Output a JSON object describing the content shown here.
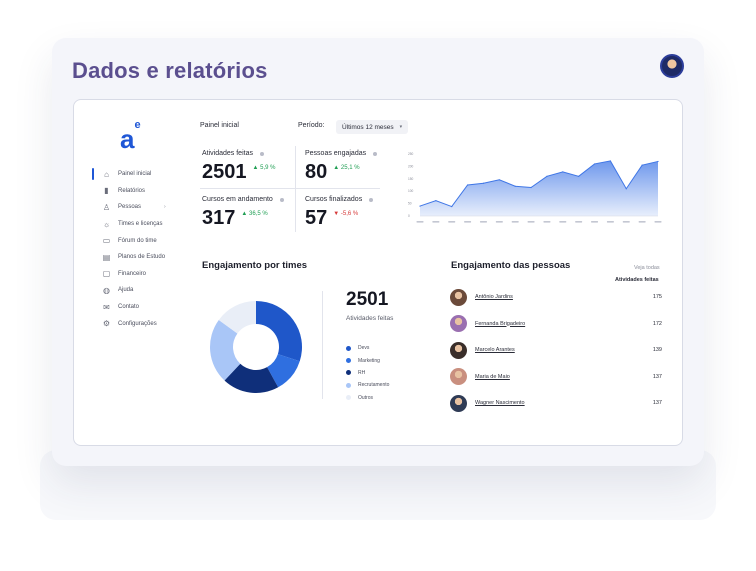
{
  "page": {
    "title": "Dados e relatórios"
  },
  "app": {
    "logo_text": "a",
    "logo_sup": "e"
  },
  "sidebar": {
    "items": [
      {
        "label": "Painel inicial",
        "icon": "home-icon",
        "active": true
      },
      {
        "label": "Relatórios",
        "icon": "bar-chart-icon"
      },
      {
        "label": "Pessoas",
        "icon": "user-icon",
        "has_chevron": true
      },
      {
        "label": "Times e licenças",
        "icon": "team-icon"
      },
      {
        "label": "Fórum do time",
        "icon": "chat-icon"
      },
      {
        "label": "Planos de Estudo",
        "icon": "book-icon"
      },
      {
        "label": "Financeiro",
        "icon": "wallet-icon"
      },
      {
        "label": "Ajuda",
        "icon": "help-icon"
      },
      {
        "label": "Contato",
        "icon": "mail-icon"
      },
      {
        "label": "Configurações",
        "icon": "gear-icon"
      }
    ],
    "chevron": "›"
  },
  "header": {
    "breadcrumb": "Painel inicial",
    "period_label": "Período:",
    "period_value": "Últimos 12 meses",
    "period_caret": "▾"
  },
  "stats": [
    {
      "label": "Atividades feitas",
      "value": "2501",
      "delta": "▲ 5,9 %",
      "trend": "up"
    },
    {
      "label": "Pessoas engajadas",
      "value": "80",
      "delta": "▲ 25,1 %",
      "trend": "up"
    },
    {
      "label": "Cursos em andamento",
      "value": "317",
      "delta": "▲ 36,5 %",
      "trend": "up"
    },
    {
      "label": "Cursos finalizados",
      "value": "57",
      "delta": "▼ -5,6 %",
      "trend": "down"
    }
  ],
  "chart_data": {
    "type": "area",
    "y_ticks": [
      "250",
      "200",
      "150",
      "100",
      "50",
      "0"
    ],
    "ylim": [
      0,
      250
    ],
    "series": [
      {
        "values": [
          40,
          62,
          38,
          125,
          132,
          146,
          120,
          115,
          160,
          178,
          160,
          210,
          222,
          110,
          205,
          220
        ]
      }
    ],
    "x_tick_count": 16,
    "color": "#3f76e6",
    "grid": false
  },
  "teams": {
    "title": "Engajamento por times",
    "total": "2501",
    "total_label": "Atividades feitas",
    "legend": [
      {
        "name": "Devs",
        "color": "#1f57c9",
        "share": 30
      },
      {
        "name": "Marketing",
        "color": "#2f6fe0",
        "share": 12
      },
      {
        "name": "RH",
        "color": "#0f2f7a",
        "share": 20
      },
      {
        "name": "Recrutamento",
        "color": "#a9c6f7",
        "share": 23
      },
      {
        "name": "Outros",
        "color": "#e9eef7",
        "share": 15
      }
    ]
  },
  "people": {
    "title": "Engajamento das pessoas",
    "view_all": "Veja todas",
    "column_header": "Atividades feitas",
    "rows": [
      {
        "name": "Antônio Jardins",
        "count": "175",
        "avatar_color": "#6b4a3a"
      },
      {
        "name": "Fernanda Brigadeiro",
        "count": "172",
        "avatar_color": "#9a6fb0"
      },
      {
        "name": "Marcelo Arantes",
        "count": "139",
        "avatar_color": "#3a2e2a"
      },
      {
        "name": "Maria de Maio",
        "count": "137",
        "avatar_color": "#c98f7f"
      },
      {
        "name": "Wagner Nascimento",
        "count": "137",
        "avatar_color": "#2f3b55"
      }
    ]
  }
}
